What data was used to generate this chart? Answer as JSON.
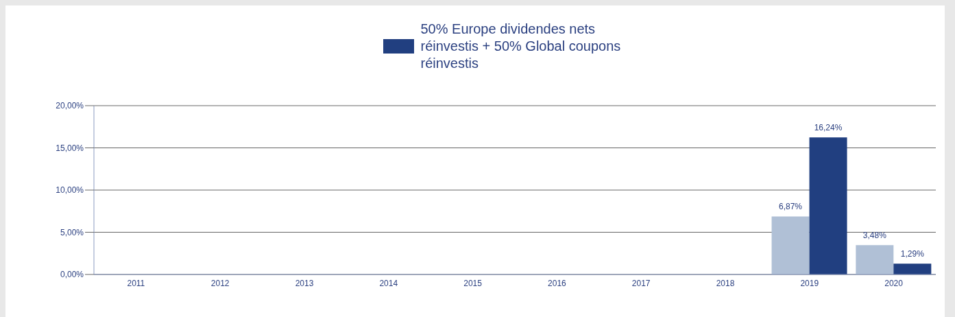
{
  "chart_data": {
    "type": "bar",
    "categories": [
      "2011",
      "2012",
      "2013",
      "2014",
      "2015",
      "2016",
      "2017",
      "2018",
      "2019",
      "2020"
    ],
    "series": [
      {
        "color": "#b0c0d6",
        "values": [
          null,
          null,
          null,
          null,
          null,
          null,
          null,
          null,
          6.87,
          3.48
        ],
        "value_labels": [
          null,
          null,
          null,
          null,
          null,
          null,
          null,
          null,
          "6,87%",
          "3,48%"
        ]
      },
      {
        "name": "50% Europe dividendes nets réinvestis + 50% Global coupons réinvestis",
        "color": "#213f80",
        "values": [
          null,
          null,
          null,
          null,
          null,
          null,
          null,
          null,
          16.24,
          1.29
        ],
        "value_labels": [
          null,
          null,
          null,
          null,
          null,
          null,
          null,
          null,
          "16,24%",
          "1,29%"
        ]
      }
    ],
    "ylim": [
      0,
      20
    ],
    "yticks": [
      {
        "value": 0,
        "label": "0,00%"
      },
      {
        "value": 5,
        "label": "5,00%"
      },
      {
        "value": 10,
        "label": "10,00%"
      },
      {
        "value": 15,
        "label": "15,00%"
      },
      {
        "value": 20,
        "label": "20,00%"
      }
    ],
    "grid": "y",
    "legend": "top"
  }
}
